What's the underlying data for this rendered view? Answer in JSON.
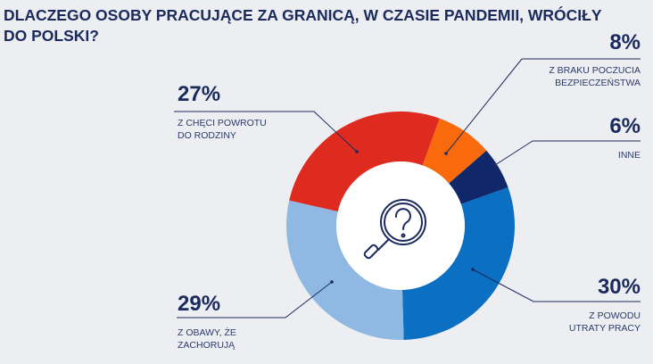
{
  "chart_data": {
    "type": "pie",
    "title": "DLACZEGO OSOBY PRACUJĄCE ZA GRANICĄ, W CZASIE PANDEMII, WRÓCIŁY DO POLSKI?",
    "slices": [
      {
        "label": "Z BRAKU POCZUCIA BEZPIECZEŃSTWA",
        "value": 8,
        "display": "8%",
        "color": "#f96a0c"
      },
      {
        "label": "INNE",
        "value": 6,
        "display": "6%",
        "color": "#10286a"
      },
      {
        "label": "Z POWODU UTRATY PRACY",
        "value": 30,
        "display": "30%",
        "color": "#0b6fc2"
      },
      {
        "label": "Z OBAWY, ŻE ZACHORUJĄ",
        "value": 29,
        "display": "29%",
        "color": "#8fb8e3"
      },
      {
        "label": "Z CHĘCI POWROTU DO RODZINY",
        "value": 27,
        "display": "27%",
        "color": "#df2a1f"
      }
    ],
    "center_icon": "magnifier-question-icon"
  }
}
